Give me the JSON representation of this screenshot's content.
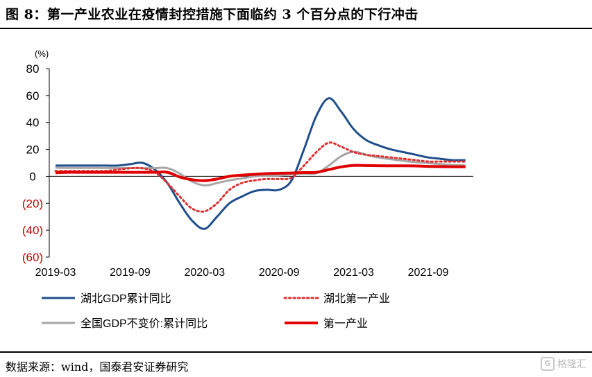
{
  "header": {
    "title": "图 8：第一产业农业在疫情封控措施下面临约 3 个百分点的下行冲击"
  },
  "footer": {
    "source": "数据来源：wind，国泰君安证券研究",
    "watermark": "格隆汇"
  },
  "chart_data": {
    "type": "line",
    "title": "",
    "ylabel": "(%)",
    "xlabel": "",
    "ylim": [
      -60,
      80
    ],
    "y_ticks": [
      80,
      60,
      40,
      20,
      0,
      -20,
      -40,
      -60
    ],
    "y_tick_labels": [
      "80",
      "60",
      "40",
      "20",
      "0",
      "(20)",
      "(40)",
      "(60)"
    ],
    "negative_tick_color": "#c00000",
    "x_tick_labels": [
      "2019-03",
      "2019-09",
      "2020-03",
      "2020-09",
      "2021-03",
      "2021-09"
    ],
    "x_tick_positions": [
      0,
      6,
      12,
      18,
      24,
      30
    ],
    "x": [
      "2019-03",
      "2019-04",
      "2019-05",
      "2019-06",
      "2019-07",
      "2019-08",
      "2019-09",
      "2019-10",
      "2019-11",
      "2019-12",
      "2020-01",
      "2020-02",
      "2020-03",
      "2020-04",
      "2020-05",
      "2020-06",
      "2020-07",
      "2020-08",
      "2020-09",
      "2020-10",
      "2020-11",
      "2020-12",
      "2021-01",
      "2021-02",
      "2021-03",
      "2021-04",
      "2021-05",
      "2021-06",
      "2021-07",
      "2021-08",
      "2021-09",
      "2021-10",
      "2021-11",
      "2021-12"
    ],
    "grid": false,
    "legend_position": "bottom",
    "series": [
      {
        "name": "湖北GDP累计同比",
        "color": "#1f4e8c",
        "style": "solid",
        "values": [
          8,
          8,
          8,
          8,
          8,
          8,
          9,
          10,
          5,
          -5,
          -20,
          -33,
          -39,
          -30,
          -20,
          -15,
          -11,
          -10,
          -10,
          -3,
          20,
          45,
          58,
          48,
          35,
          27,
          23,
          20,
          18,
          16,
          14,
          13,
          12,
          12
        ]
      },
      {
        "name": "湖北第一产业",
        "color": "#e03030",
        "style": "dotted",
        "values": [
          4,
          4,
          4,
          4,
          4,
          5,
          6,
          6,
          3,
          -5,
          -15,
          -24,
          -26,
          -20,
          -10,
          -5,
          -3,
          -2,
          -2,
          -1,
          8,
          18,
          25,
          22,
          18,
          16,
          15,
          14,
          13,
          12,
          11,
          11,
          11,
          11
        ]
      },
      {
        "name": "全国GDP不变价:累计同比",
        "color": "#a6a6a6",
        "style": "solid",
        "values": [
          6.4,
          6.3,
          6.3,
          6.3,
          6.2,
          6.2,
          6.2,
          6.1,
          6.1,
          6.1,
          2,
          -4,
          -6.8,
          -5,
          -3,
          -1.6,
          0,
          0.5,
          0.7,
          1.5,
          2,
          2.3,
          8,
          15,
          18.3,
          16,
          14,
          12.7,
          11.5,
          10.5,
          9.8,
          9,
          8.4,
          8.1
        ]
      },
      {
        "name": "第一产业",
        "color": "#e00000",
        "style": "solid-thick",
        "values": [
          2.7,
          3,
          3,
          3,
          3,
          3,
          3,
          3,
          3,
          3,
          -0.5,
          -2.5,
          -3.2,
          -2,
          0,
          0.9,
          1.5,
          2,
          2.3,
          2.5,
          2.8,
          3,
          5,
          7,
          8.1,
          8,
          7.9,
          7.8,
          7.8,
          7.7,
          7.4,
          7.2,
          7.1,
          7.1
        ]
      }
    ]
  }
}
